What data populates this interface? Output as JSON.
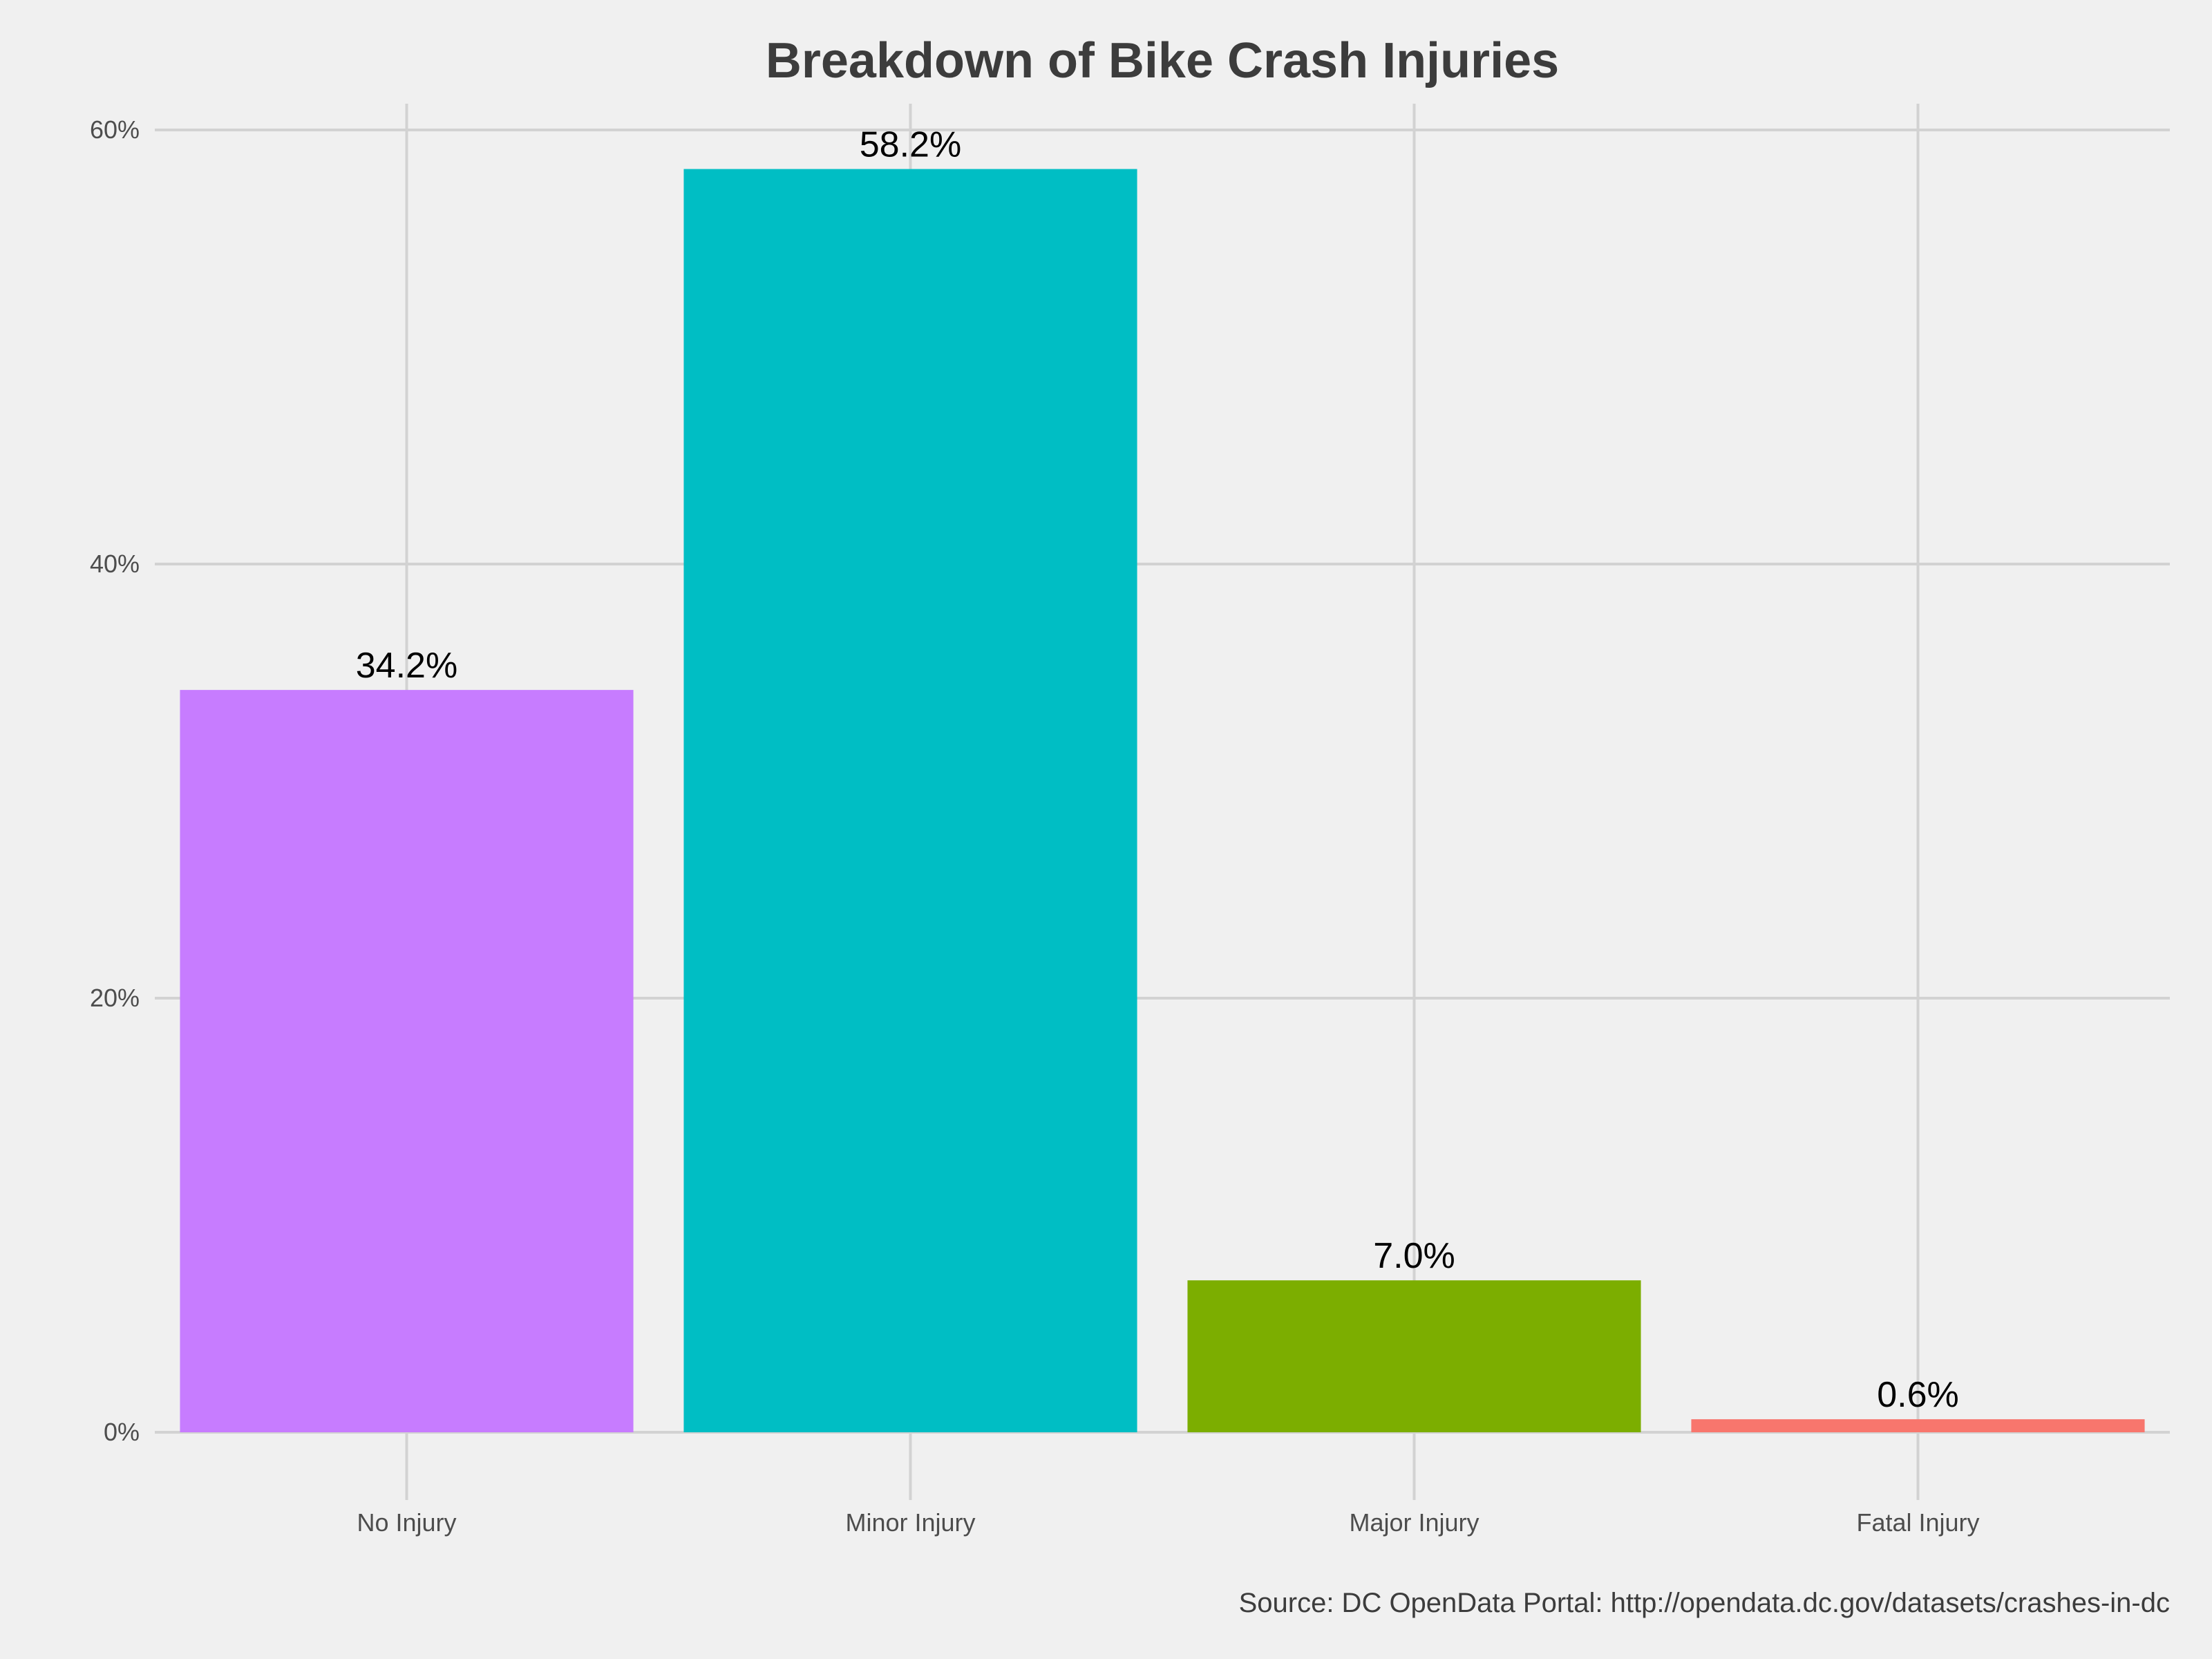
{
  "chart_data": {
    "type": "bar",
    "title": "Breakdown of Bike Crash Injuries",
    "xlabel": "",
    "ylabel": "",
    "categories": [
      "No Injury",
      "Minor Injury",
      "Major Injury",
      "Fatal Injury"
    ],
    "values": [
      34.2,
      58.2,
      7.0,
      0.6
    ],
    "data_labels": [
      "34.2%",
      "58.2%",
      "7.0%",
      "0.6%"
    ],
    "bar_colors": [
      "#c77cff",
      "#00bec4",
      "#7cae00",
      "#f8766d"
    ],
    "ylim": [
      0,
      60
    ],
    "yticks": [
      0,
      20,
      40,
      60
    ],
    "ytick_labels": [
      "0%",
      "20%",
      "40%",
      "60%"
    ],
    "grid": true,
    "legend": "none",
    "caption": "Source: DC OpenData Portal: http://opendata.dc.gov/datasets/crashes-in-dc"
  },
  "colors": {
    "background": "#f0f0f0",
    "grid": "#d2d2d2",
    "title": "#3c3c3c"
  }
}
